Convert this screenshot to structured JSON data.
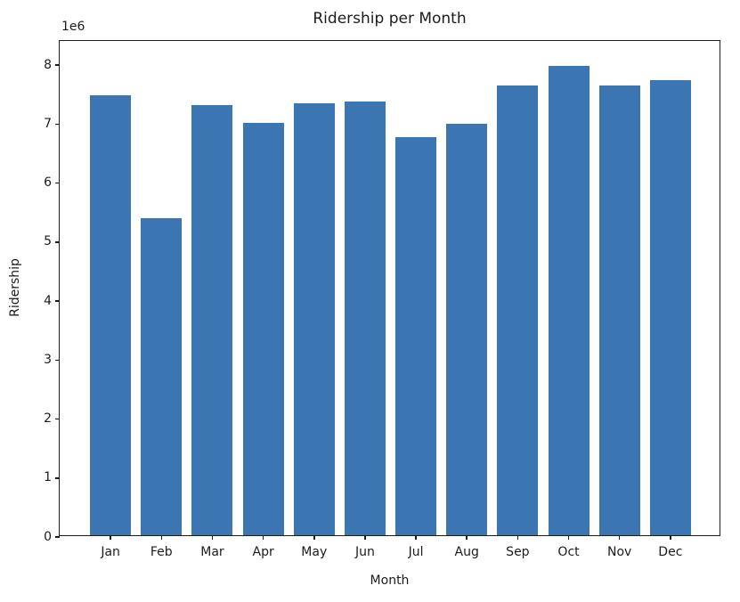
{
  "chart_data": {
    "type": "bar",
    "title": "Ridership per Month",
    "xlabel": "Month",
    "ylabel": "Ridership",
    "y_offset_text": "1e6",
    "categories": [
      "Jan",
      "Feb",
      "Mar",
      "Apr",
      "May",
      "Jun",
      "Jul",
      "Aug",
      "Sep",
      "Oct",
      "Nov",
      "Dec"
    ],
    "values": [
      7460000,
      5370000,
      7300000,
      6990000,
      7330000,
      7360000,
      6750000,
      6970000,
      7620000,
      7960000,
      7620000,
      7710000
    ],
    "ylim": [
      0,
      8410000
    ],
    "yticks": [
      0,
      1000000,
      2000000,
      3000000,
      4000000,
      5000000,
      6000000,
      7000000,
      8000000
    ],
    "ytick_labels": [
      "0",
      "1",
      "2",
      "3",
      "4",
      "5",
      "6",
      "7",
      "8"
    ],
    "bar_color": "#3b76b2",
    "axis_color": "#1c1c1c",
    "grid": false,
    "legend": null
  }
}
